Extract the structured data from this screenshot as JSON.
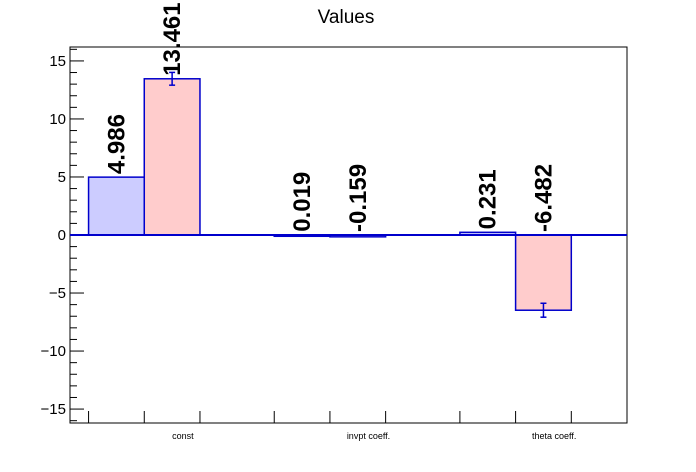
{
  "chart_data": {
    "type": "bar",
    "title": "Values",
    "xlabel": "",
    "ylabel": "",
    "categories": [
      "const",
      "invpt coeff.",
      "theta coeff."
    ],
    "series": [
      {
        "values": [
          4.986,
          0.019,
          0.231
        ],
        "labels": [
          "4.986",
          "0.019",
          "0.231"
        ],
        "errors": [
          0,
          0,
          0
        ],
        "color": "#ccccff"
      },
      {
        "values": [
          13.461,
          -0.159,
          -6.482
        ],
        "labels": [
          "13.461",
          "-0.159",
          "-6.482"
        ],
        "errors": [
          0.55,
          0,
          0.6
        ],
        "color": "#ffcccc"
      }
    ],
    "ylim": [
      -16.2,
      16.2
    ],
    "yticks": [
      -15,
      -10,
      -5,
      0,
      5,
      10,
      15
    ],
    "ytick_labels": [
      "−15",
      "−10",
      "−5",
      "0",
      "5",
      "10",
      "15"
    ],
    "grid": false,
    "legend": "none",
    "edge_color": "#0000cc"
  }
}
